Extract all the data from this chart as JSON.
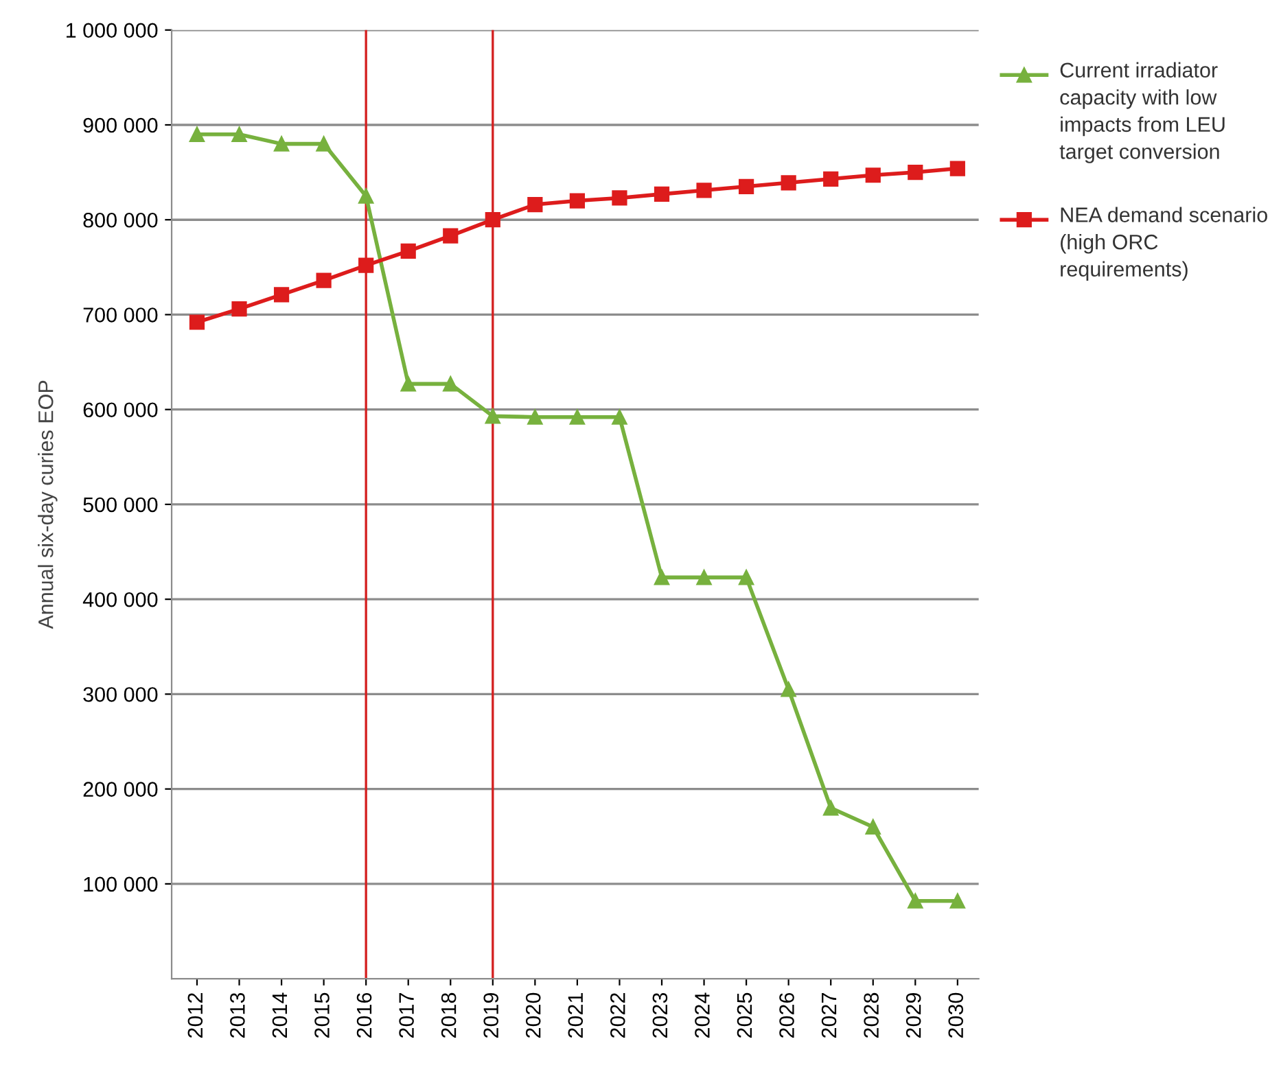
{
  "chart_data": {
    "type": "line",
    "ylabel": "Annual six-day curies EOP",
    "categories": [
      "2012",
      "2013",
      "2014",
      "2015",
      "2016",
      "2017",
      "2018",
      "2019",
      "2020",
      "2021",
      "2022",
      "2023",
      "2024",
      "2025",
      "2026",
      "2027",
      "2028",
      "2029",
      "2030"
    ],
    "series": [
      {
        "name": "Current irradiator capacity with low impacts from LEU target conversion",
        "color": "#77b13e",
        "marker": "triangle",
        "values": [
          890000,
          890000,
          880000,
          880000,
          825000,
          627000,
          627000,
          593000,
          592000,
          592000,
          592000,
          423000,
          423000,
          423000,
          305000,
          180000,
          160000,
          82000,
          82000
        ]
      },
      {
        "name": "NEA demand scenario (high ORC requirements)",
        "color": "#dd1c1c",
        "marker": "square",
        "values": [
          692000,
          706000,
          721000,
          736000,
          752000,
          767000,
          783000,
          800000,
          816000,
          820000,
          823000,
          827000,
          831000,
          835000,
          839000,
          843000,
          847000,
          850000,
          854000
        ]
      }
    ],
    "ylim": [
      0,
      1000000
    ],
    "yticks": [
      {
        "value": 100000,
        "label": "100 000"
      },
      {
        "value": 200000,
        "label": "200 000"
      },
      {
        "value": 300000,
        "label": "300 000"
      },
      {
        "value": 400000,
        "label": "400 000"
      },
      {
        "value": 500000,
        "label": "500 000"
      },
      {
        "value": 600000,
        "label": "600 000"
      },
      {
        "value": 700000,
        "label": "700 000"
      },
      {
        "value": 800000,
        "label": "800 000"
      },
      {
        "value": 900000,
        "label": "900 000"
      },
      {
        "value": 1000000,
        "label": "1 000 000"
      }
    ],
    "ref_lines": [
      {
        "axis": "x",
        "value": "2016",
        "color": "#d42020"
      },
      {
        "axis": "x",
        "value": "2019",
        "color": "#d42020"
      }
    ],
    "grid": "y",
    "legend": "right",
    "line_style": "solid"
  }
}
